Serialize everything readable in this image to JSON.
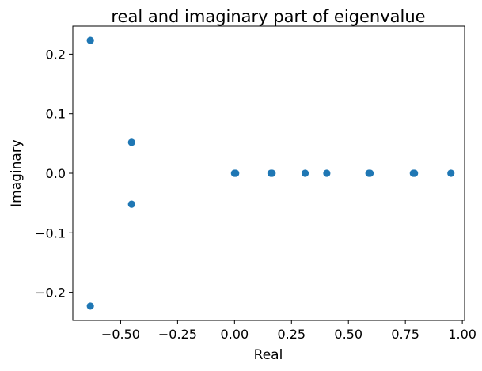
{
  "chart_data": {
    "type": "scatter",
    "title": "real and imaginary part of eigenvalue",
    "xlabel": "Real",
    "ylabel": "Imaginary",
    "xlim": [
      -0.71,
      1.01
    ],
    "ylim": [
      -0.247,
      0.247
    ],
    "xticks": [
      {
        "value": -0.5,
        "label": "−0.50"
      },
      {
        "value": -0.25,
        "label": "−0.25"
      },
      {
        "value": 0.0,
        "label": "0.00"
      },
      {
        "value": 0.25,
        "label": "0.25"
      },
      {
        "value": 0.5,
        "label": "0.50"
      },
      {
        "value": 0.75,
        "label": "0.75"
      },
      {
        "value": 1.0,
        "label": "1.00"
      }
    ],
    "yticks": [
      {
        "value": -0.2,
        "label": "−0.2"
      },
      {
        "value": -0.1,
        "label": "−0.1"
      },
      {
        "value": 0.0,
        "label": "0.0"
      },
      {
        "value": 0.1,
        "label": "0.1"
      },
      {
        "value": 0.2,
        "label": "0.2"
      }
    ],
    "grid": false,
    "marker_color": "#1f77b4",
    "points": [
      {
        "x": -0.633,
        "y": 0.223
      },
      {
        "x": -0.633,
        "y": -0.223
      },
      {
        "x": -0.452,
        "y": 0.052
      },
      {
        "x": -0.452,
        "y": -0.052
      },
      {
        "x": 0.0,
        "y": 0.0
      },
      {
        "x": 0.005,
        "y": 0.0
      },
      {
        "x": 0.16,
        "y": 0.0
      },
      {
        "x": 0.165,
        "y": 0.0
      },
      {
        "x": 0.31,
        "y": 0.0
      },
      {
        "x": 0.405,
        "y": 0.0
      },
      {
        "x": 0.59,
        "y": 0.0
      },
      {
        "x": 0.595,
        "y": 0.0
      },
      {
        "x": 0.785,
        "y": 0.0
      },
      {
        "x": 0.79,
        "y": 0.0
      },
      {
        "x": 0.95,
        "y": 0.0
      }
    ]
  }
}
